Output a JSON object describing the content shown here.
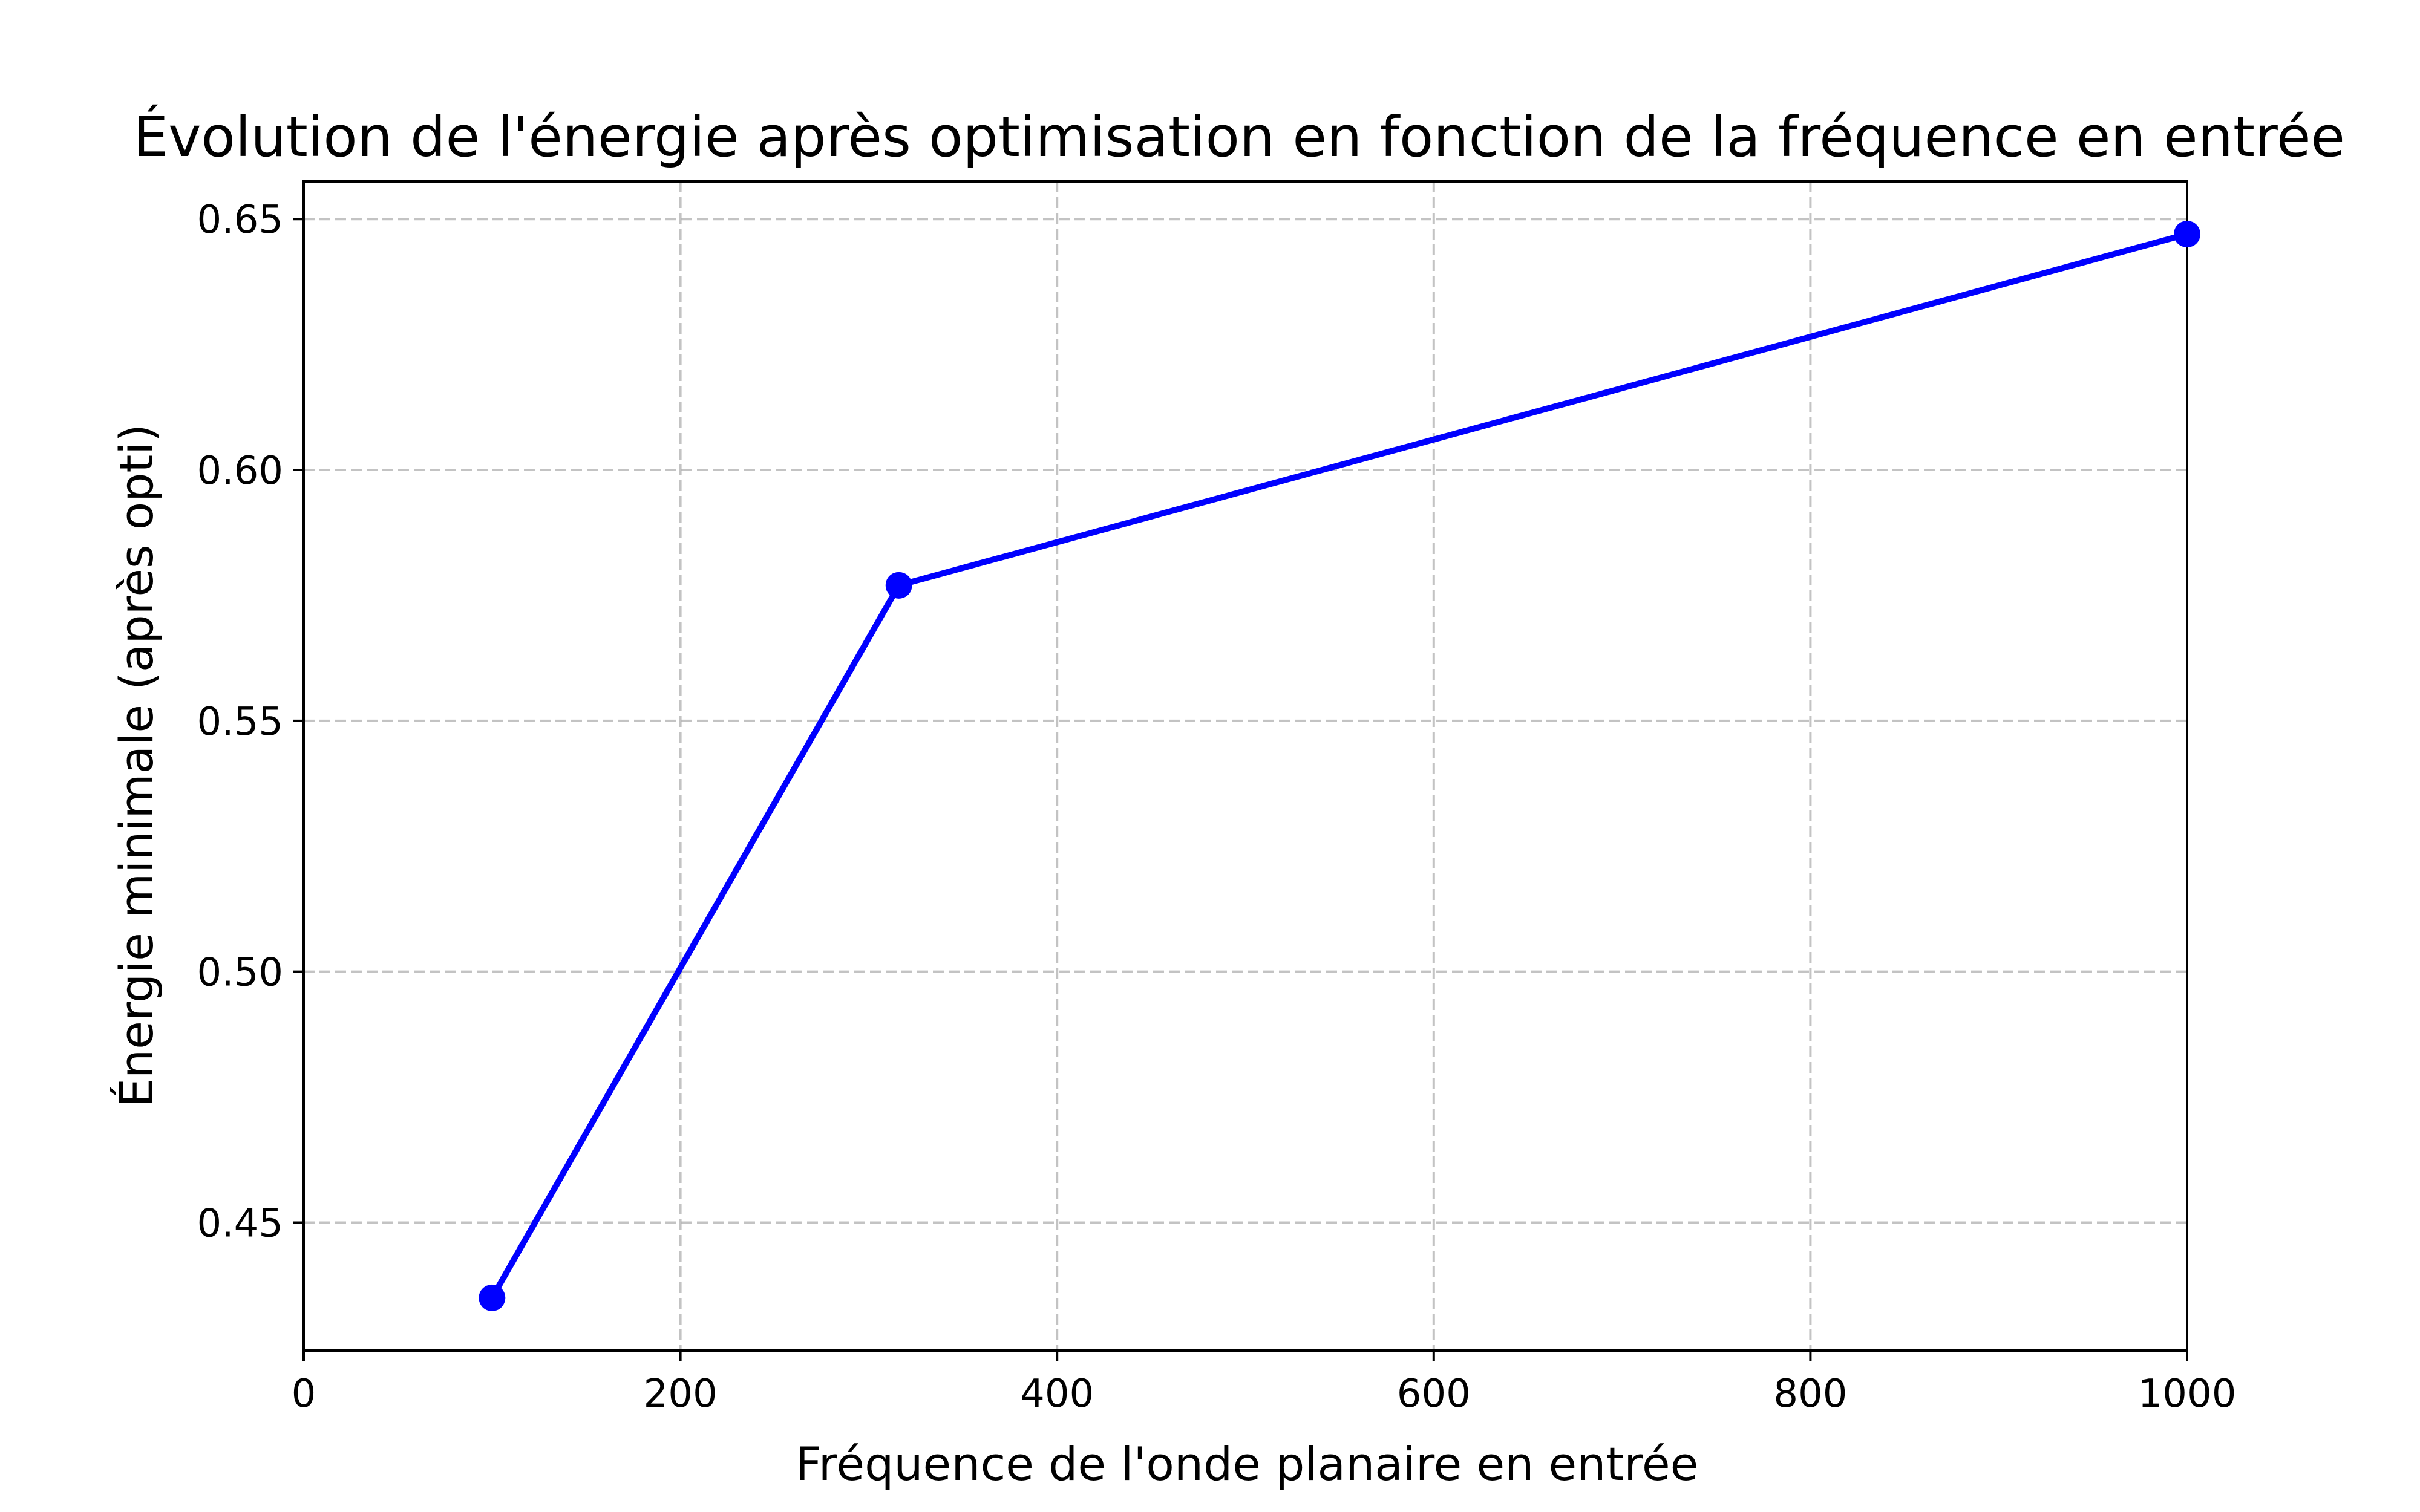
{
  "chart_data": {
    "type": "line",
    "title": "Évolution de l'énergie après optimisation en fonction de la fréquence en entrée",
    "xlabel": "Fréquence de l'onde planaire en entrée",
    "ylabel": "Énergie minimale (après opti)",
    "xlim": [
      0,
      1000
    ],
    "ylim": [
      0.4245,
      0.6575
    ],
    "x_ticks": [
      0,
      200,
      400,
      600,
      800,
      1000
    ],
    "y_ticks": [
      0.45,
      0.5,
      0.55,
      0.6,
      0.65
    ],
    "x_tick_labels": [
      "0",
      "200",
      "400",
      "600",
      "800",
      "1000"
    ],
    "y_tick_labels": [
      "0.45",
      "0.50",
      "0.55",
      "0.60",
      "0.65"
    ],
    "grid": true,
    "series": [
      {
        "x": [
          100,
          316,
          1000
        ],
        "y": [
          0.435,
          0.577,
          0.647
        ],
        "color": "#0000ff",
        "marker": "circle"
      }
    ]
  }
}
